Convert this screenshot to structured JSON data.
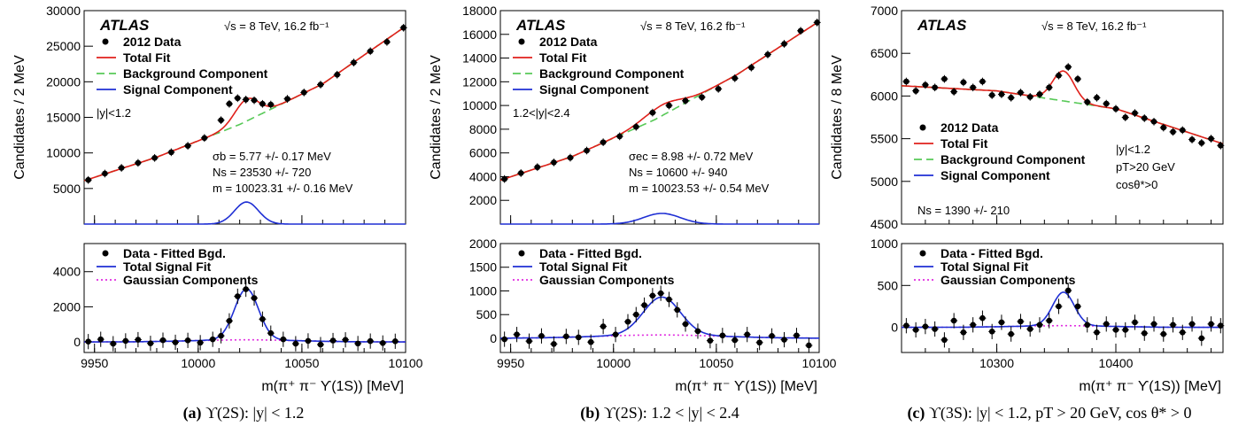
{
  "chart_data": [
    {
      "type": "scatter",
      "id": "a",
      "caption_tag": "(a)",
      "caption_text": "ϒ(2S): |y| < 1.2",
      "experiment": "ATLAS",
      "energy_label": "√s = 8 TeV, 16.2 fb⁻¹",
      "region_label": "|y|<1.2",
      "xlabel": "m(π⁺ π⁻ ϒ(1S)) [MeV]",
      "xlim": [
        9945,
        10100
      ],
      "xticks": [
        9950,
        10000,
        10050,
        10100
      ],
      "top": {
        "ylabel": "Candidates / 2 MeV",
        "ylim": [
          0,
          30000
        ],
        "yticks": [
          5000,
          10000,
          15000,
          20000,
          25000,
          30000
        ],
        "legend": [
          "2012 Data",
          "Total Fit",
          "Background Component",
          "Signal Component"
        ],
        "fit_results": [
          "σb = 5.77 +/- 0.17 MeV",
          "Ns = 23530 +/- 720",
          "m = 10023.31 +/- 0.16 MeV"
        ],
        "background": {
          "x": [
            9945,
            9980,
            10020,
            10060,
            10100
          ],
          "y": [
            6100,
            9400,
            14000,
            19700,
            27800
          ]
        },
        "signal_peak": {
          "mean": 10023.3,
          "sigma": 5.77,
          "amplitude": 3100
        },
        "data_points": {
          "x": [
            9947,
            9955,
            9963,
            9971,
            9979,
            9987,
            9995,
            10003,
            10011,
            10015,
            10019,
            10023,
            10027,
            10031,
            10035,
            10043,
            10051,
            10059,
            10067,
            10075,
            10083,
            10091,
            10099
          ],
          "y": [
            6200,
            7100,
            7900,
            8600,
            9300,
            10100,
            11000,
            12100,
            14600,
            16900,
            17700,
            17500,
            17400,
            16900,
            16800,
            17600,
            18500,
            19600,
            21000,
            22700,
            24300,
            25600,
            27600
          ]
        }
      },
      "bottom": {
        "ylim": [
          -600,
          5600
        ],
        "yticks": [
          0,
          2000,
          4000
        ],
        "legend": [
          "Data - Fitted Bgd.",
          "Total Signal Fit",
          "Gaussian Components"
        ],
        "signal_peak": {
          "mean": 10023.3,
          "sigma": 5.77,
          "amplitude": 2900
        },
        "gauss_wide": {
          "mean": 10023,
          "sigma": 25,
          "amplitude": 120
        },
        "data_points": {
          "x": [
            9947,
            9953,
            9959,
            9965,
            9971,
            9977,
            9983,
            9989,
            9995,
            10001,
            10007,
            10011,
            10015,
            10019,
            10023,
            10027,
            10031,
            10035,
            10041,
            10047,
            10053,
            10059,
            10065,
            10071,
            10077,
            10083,
            10089,
            10095
          ],
          "y": [
            20,
            150,
            -100,
            60,
            130,
            -80,
            100,
            -20,
            90,
            -40,
            150,
            350,
            1200,
            2600,
            3000,
            2500,
            1300,
            500,
            150,
            -100,
            60,
            -150,
            80,
            120,
            -90,
            50,
            -60,
            40
          ]
        }
      }
    },
    {
      "type": "scatter",
      "id": "b",
      "caption_tag": "(b)",
      "caption_text": "ϒ(2S): 1.2 < |y| < 2.4",
      "experiment": "ATLAS",
      "energy_label": "√s = 8 TeV, 16.2 fb⁻¹",
      "region_label": "1.2<|y|<2.4",
      "xlabel": "m(π⁺ π⁻ ϒ(1S)) [MeV]",
      "xlim": [
        9945,
        10100
      ],
      "xticks": [
        9950,
        10000,
        10050,
        10100
      ],
      "top": {
        "ylabel": "Candidates / 2 MeV",
        "ylim": [
          0,
          18000
        ],
        "yticks": [
          2000,
          4000,
          6000,
          8000,
          10000,
          12000,
          14000,
          16000,
          18000
        ],
        "legend": [
          "2012 Data",
          "Total Fit",
          "Background Component",
          "Signal Component"
        ],
        "fit_results": [
          "σec = 8.98 +/- 0.72 MeV",
          "Ns = 10600 +/- 940",
          "m = 10023.53 +/- 0.54 MeV"
        ],
        "background": {
          "x": [
            9945,
            9980,
            10020,
            10060,
            10100
          ],
          "y": [
            3700,
            5700,
            8800,
            12600,
            17100
          ]
        },
        "signal_peak": {
          "mean": 10023.5,
          "sigma": 8.98,
          "amplitude": 900
        },
        "data_points": {
          "x": [
            9947,
            9955,
            9963,
            9971,
            9979,
            9987,
            9995,
            10003,
            10011,
            10019,
            10027,
            10035,
            10043,
            10051,
            10059,
            10067,
            10075,
            10083,
            10091,
            10099
          ],
          "y": [
            3800,
            4300,
            4800,
            5200,
            5600,
            6200,
            6900,
            7400,
            8200,
            9400,
            10000,
            10400,
            10700,
            11400,
            12300,
            13200,
            14300,
            15200,
            16300,
            17000
          ]
        }
      },
      "bottom": {
        "ylim": [
          -300,
          2000
        ],
        "yticks": [
          0,
          500,
          1000,
          1500,
          2000
        ],
        "legend": [
          "Data - Fitted Bgd.",
          "Total Signal Fit",
          "Gaussian Components"
        ],
        "signal_peak": {
          "mean": 10023.5,
          "sigma": 8.98,
          "amplitude": 800
        },
        "gauss_wide": {
          "mean": 10023,
          "sigma": 30,
          "amplitude": 70
        },
        "data_points": {
          "x": [
            9947,
            9953,
            9959,
            9965,
            9971,
            9977,
            9983,
            9989,
            9995,
            10001,
            10007,
            10011,
            10015,
            10019,
            10023,
            10027,
            10031,
            10035,
            10041,
            10047,
            10053,
            10059,
            10065,
            10071,
            10077,
            10083,
            10089,
            10095
          ],
          "y": [
            -20,
            80,
            -60,
            50,
            -120,
            40,
            20,
            -80,
            250,
            80,
            350,
            500,
            700,
            900,
            950,
            820,
            600,
            300,
            150,
            -50,
            60,
            -40,
            80,
            -90,
            50,
            -30,
            60,
            -150
          ]
        }
      }
    },
    {
      "type": "scatter",
      "id": "c",
      "caption_tag": "(c)",
      "caption_text": "ϒ(3S): |y| < 1.2, pT > 20 GeV, cos θ* > 0",
      "experiment": "ATLAS",
      "energy_label": "√s = 8 TeV, 16.2 fb⁻¹",
      "region_label": "|y|<1.2",
      "extra_labels": [
        "pT>20 GeV",
        "cosθ*>0"
      ],
      "xlabel": "m(π⁺ π⁻ ϒ(1S)) [MeV]",
      "xlim": [
        10220,
        10490
      ],
      "xticks": [
        10300,
        10400
      ],
      "top": {
        "ylabel": "Candidates / 8 MeV",
        "ylim": [
          4500,
          7000
        ],
        "yticks": [
          4500,
          5000,
          5500,
          6000,
          6500,
          7000
        ],
        "legend": [
          "2012 Data",
          "Total Fit",
          "Background Component",
          "Signal Component"
        ],
        "fit_results": [
          "Ns = 1390 +/- 210"
        ],
        "background": {
          "x": [
            10220,
            10300,
            10400,
            10490
          ],
          "y": [
            6120,
            6060,
            5850,
            5440
          ]
        },
        "signal_peak": {
          "mean": 10356,
          "sigma": 9,
          "amplitude": 350
        },
        "data_points": {
          "x": [
            10224,
            10232,
            10240,
            10248,
            10256,
            10264,
            10272,
            10280,
            10288,
            10296,
            10304,
            10312,
            10320,
            10328,
            10336,
            10344,
            10352,
            10360,
            10368,
            10376,
            10384,
            10392,
            10400,
            10408,
            10416,
            10424,
            10432,
            10440,
            10448,
            10456,
            10464,
            10472,
            10480,
            10488
          ],
          "y": [
            6170,
            6060,
            6130,
            6100,
            6200,
            6050,
            6160,
            6100,
            6170,
            6010,
            6020,
            5980,
            6040,
            5990,
            6020,
            6100,
            6240,
            6340,
            6200,
            5930,
            5980,
            5910,
            5850,
            5750,
            5800,
            5740,
            5700,
            5630,
            5580,
            5600,
            5490,
            5450,
            5500,
            5420
          ]
        }
      },
      "bottom": {
        "ylim": [
          -300,
          1000
        ],
        "yticks": [
          0,
          500,
          1000
        ],
        "legend": [
          "Data - Fitted Bgd.",
          "Total Signal Fit",
          "Gaussian Components"
        ],
        "signal_peak": {
          "mean": 10356,
          "sigma": 9,
          "amplitude": 400
        },
        "gauss_wide": {
          "mean": 10356,
          "sigma": 40,
          "amplitude": 20
        },
        "data_points": {
          "x": [
            10224,
            10232,
            10240,
            10248,
            10256,
            10264,
            10272,
            10280,
            10288,
            10296,
            10304,
            10312,
            10320,
            10328,
            10336,
            10344,
            10352,
            10360,
            10368,
            10376,
            10384,
            10392,
            10400,
            10408,
            10416,
            10424,
            10432,
            10440,
            10448,
            10456,
            10464,
            10472,
            10480,
            10488
          ],
          "y": [
            20,
            -30,
            10,
            -20,
            -150,
            80,
            -60,
            30,
            110,
            -50,
            60,
            -80,
            70,
            -20,
            30,
            80,
            250,
            440,
            250,
            30,
            -60,
            40,
            -30,
            -30,
            60,
            -70,
            40,
            -80,
            30,
            -60,
            40,
            -130,
            40,
            20
          ]
        }
      }
    }
  ]
}
